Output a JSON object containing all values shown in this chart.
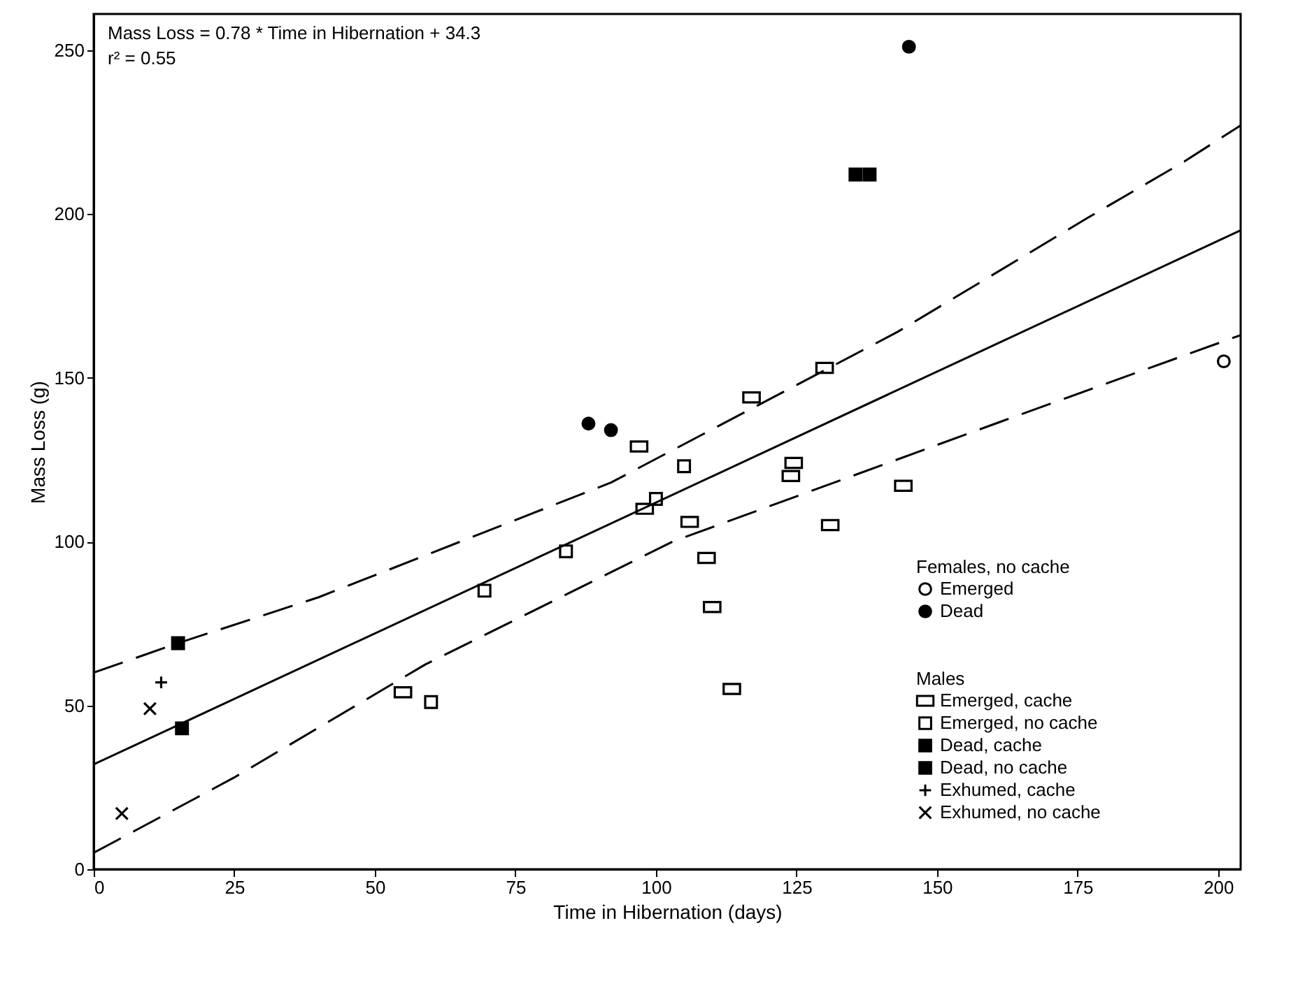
{
  "chart_data": {
    "type": "scatter",
    "xlabel": "Time in Hibernation (days)",
    "ylabel": "Mass Loss (g)",
    "legend_title": "Females, no cache",
    "annotations": [
      "Mass Loss = 0.78 * Time in Hibernation + 34.3",
      "r² = 0.55",
      "Males"
    ],
    "xlim": [
      0,
      204
    ],
    "ylim": [
      0,
      261
    ],
    "xticks": [
      0,
      25,
      50,
      75,
      100,
      125,
      150,
      175,
      200
    ],
    "yticks": [
      0,
      50,
      100,
      150,
      200,
      250
    ],
    "grid": false,
    "legend": "bottom right",
    "series": [
      {
        "name": "Emerged",
        "color": "#000000",
        "x": [
          201
        ],
        "values": [
          155
        ]
      },
      {
        "name": "Dead",
        "color": "#000000",
        "x": [
          88,
          92,
          145
        ],
        "values": [
          136,
          134,
          251
        ]
      },
      {
        "name": "Emerged, cache",
        "color": "#000000",
        "x": [
          55,
          97,
          98,
          106,
          109,
          110,
          113.5,
          117,
          124,
          124.5,
          130,
          131,
          144
        ],
        "values": [
          54,
          129,
          110,
          106,
          95,
          80,
          55,
          144,
          120,
          124,
          153,
          105,
          117
        ]
      },
      {
        "name": "Emerged, no cache",
        "color": "#000000",
        "x": [
          60,
          69.5,
          84,
          100,
          105
        ],
        "values": [
          51,
          85,
          97,
          113,
          123
        ]
      },
      {
        "name": "Dead, cache",
        "color": "#000000",
        "x": [
          15.7,
          135.5,
          138
        ],
        "values": [
          43,
          212,
          212
        ]
      },
      {
        "name": "Dead, no cache",
        "color": "#000000",
        "x": [
          15
        ],
        "values": [
          69
        ]
      },
      {
        "name": "Exhumed, cache",
        "color": "#000000",
        "x": [
          12
        ],
        "values": [
          57
        ]
      },
      {
        "name": "Exhumed, no cache",
        "color": "#000000",
        "x": [
          10,
          5
        ],
        "values": [
          49,
          17
        ]
      },
      {
        "type": "line",
        "color": "#000000",
        "line_style": "solid",
        "x": [
          0,
          204
        ],
        "values": [
          32,
          195
        ]
      },
      {
        "type": "line",
        "color": "#000000",
        "line_style": "dashed",
        "x": [
          0,
          15,
          40,
          92,
          143,
          177,
          194,
          204
        ],
        "values": [
          60,
          69,
          83,
          118,
          164,
          199,
          216,
          227
        ]
      },
      {
        "type": "line",
        "color": "#000000",
        "line_style": "dashed",
        "x": [
          0,
          25,
          59,
          103,
          162,
          204
        ],
        "values": [
          5,
          28,
          62.5,
          100,
          137,
          163
        ]
      }
    ]
  }
}
